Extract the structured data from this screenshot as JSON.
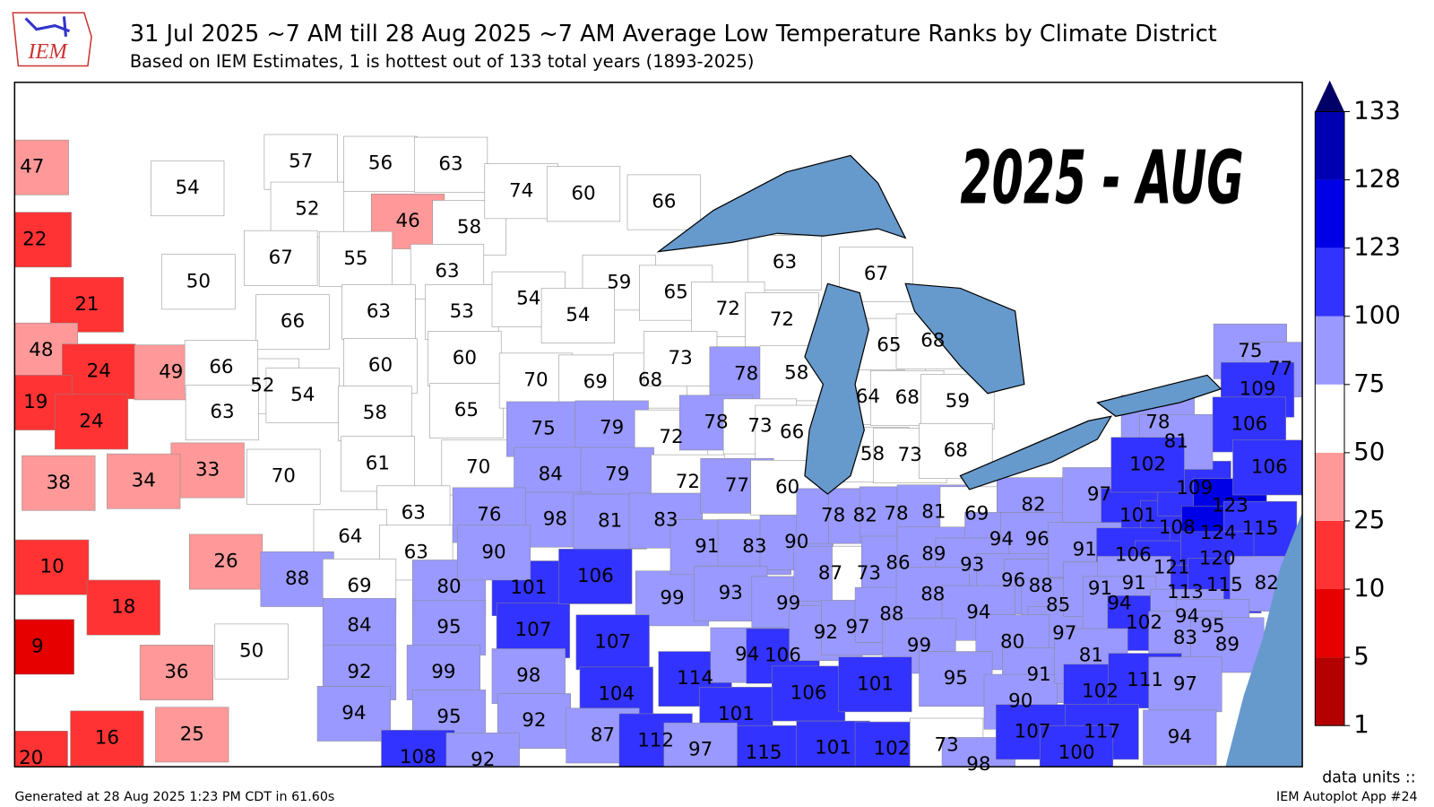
{
  "header": {
    "title": "31 Jul 2025 ~7 AM till 28 Aug 2025 ~7 AM Average Low Temperature Ranks by Climate District",
    "subtitle": "Based on IEM Estimates, 1 is hottest out of 133 total years (1893-2025)"
  },
  "logo": "IEM",
  "stamp": "2025 - AUG",
  "colorbar": {
    "ticks": [
      1,
      5,
      10,
      25,
      50,
      75,
      100,
      123,
      128,
      133
    ],
    "colors": [
      "#b30000",
      "#e60000",
      "#ff3333",
      "#ff9999",
      "#ffffff",
      "#9999ff",
      "#3333ff",
      "#0000e6",
      "#0000b3"
    ],
    "extend_color": "#000066"
  },
  "districts": [
    47,
    54,
    22,
    50,
    21,
    57,
    56,
    63,
    52,
    46,
    58,
    67,
    55,
    63,
    66,
    63,
    53,
    60,
    60,
    52,
    54,
    58,
    65,
    48,
    24,
    49,
    66,
    19,
    24,
    63,
    33,
    38,
    34,
    70,
    61,
    70,
    63,
    64,
    63,
    10,
    26,
    88,
    18,
    9,
    50,
    36,
    20,
    16,
    25,
    69,
    80,
    101,
    84,
    95,
    107,
    92,
    99,
    98,
    94,
    95,
    92,
    108,
    92,
    74,
    60,
    66,
    54,
    59,
    54,
    70,
    69,
    68,
    75,
    79,
    72,
    84,
    79,
    72,
    98,
    81,
    83,
    76,
    90,
    63,
    65,
    72,
    72,
    73,
    78,
    58,
    78,
    73,
    66,
    106,
    99,
    107,
    104,
    114,
    101,
    77,
    60,
    91,
    83,
    90,
    93,
    99,
    94,
    106,
    67,
    65,
    68,
    64,
    68,
    59,
    58,
    73,
    68,
    78,
    82,
    78,
    87,
    73,
    86,
    92,
    97,
    88,
    81,
    69,
    82,
    89,
    94,
    96,
    93,
    96,
    88,
    88,
    94,
    85,
    97,
    80,
    99,
    95,
    91,
    90,
    106,
    101,
    115,
    101,
    102,
    73,
    98,
    87,
    112,
    97,
    97,
    101,
    108,
    109,
    123,
    124,
    115,
    91,
    106,
    121,
    120,
    113,
    115,
    82,
    75,
    77,
    109,
    78,
    81,
    106,
    102,
    106,
    91,
    91,
    94,
    102,
    94,
    95,
    83,
    89,
    81,
    102,
    111,
    97,
    107,
    117,
    100,
    94
  ],
  "footer": {
    "generated": "Generated at 28 Aug 2025 1:23 PM CDT in 61.60s",
    "units": "data units ::",
    "app": "IEM Autoplot App #24"
  }
}
